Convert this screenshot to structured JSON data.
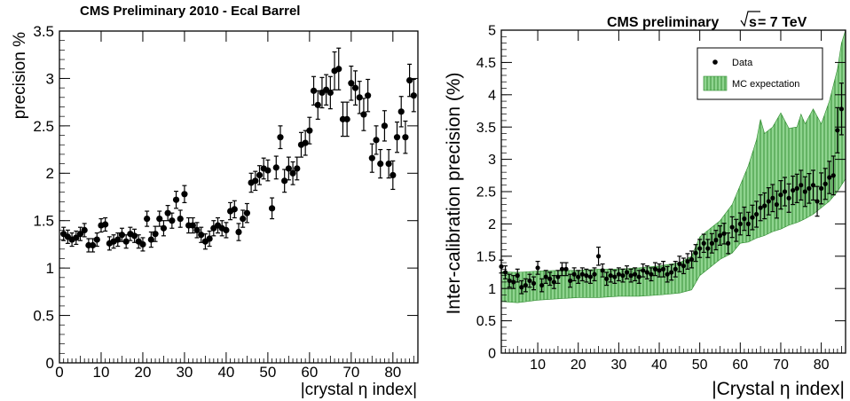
{
  "chart_data": [
    {
      "type": "scatter",
      "title": "CMS Preliminary 2010 - Ecal Barrel",
      "xlabel": "|crystal η index|",
      "ylabel": "precision %",
      "xlim": [
        0,
        86
      ],
      "ylim": [
        0,
        3.5
      ],
      "xticks": [
        0,
        10,
        20,
        30,
        40,
        50,
        60,
        70,
        80
      ],
      "yticks": [
        0,
        0.5,
        1,
        1.5,
        2,
        2.5,
        3,
        3.5
      ],
      "ytick_labels": [
        "0",
        "0.5",
        "1",
        "1.5",
        "2",
        "2.5",
        "3",
        "3.5"
      ],
      "grid": false,
      "series": [
        {
          "color": "#000000",
          "x": [
            1,
            2,
            3,
            4,
            5,
            6,
            7,
            8,
            9,
            10,
            11,
            12,
            13,
            14,
            15,
            16,
            17,
            18,
            19,
            20,
            21,
            22,
            23,
            24,
            25,
            26,
            27,
            28,
            29,
            30,
            31,
            32,
            33,
            34,
            35,
            36,
            37,
            38,
            39,
            40,
            41,
            42,
            43,
            44,
            45,
            46,
            47,
            48,
            49,
            50,
            51,
            52,
            53,
            54,
            55,
            56,
            57,
            58,
            59,
            60,
            61,
            62,
            63,
            64,
            65,
            66,
            67,
            68,
            69,
            70,
            71,
            72,
            73,
            74,
            75,
            76,
            77,
            78,
            79,
            80,
            81,
            82,
            83,
            84,
            85
          ],
          "y": [
            1.36,
            1.33,
            1.3,
            1.32,
            1.36,
            1.4,
            1.24,
            1.24,
            1.3,
            1.45,
            1.46,
            1.26,
            1.28,
            1.3,
            1.35,
            1.28,
            1.36,
            1.34,
            1.28,
            1.25,
            1.52,
            1.3,
            1.36,
            1.52,
            1.42,
            1.58,
            1.5,
            1.72,
            1.52,
            1.78,
            1.45,
            1.45,
            1.4,
            1.35,
            1.28,
            1.31,
            1.42,
            1.45,
            1.42,
            1.4,
            1.6,
            1.62,
            1.38,
            1.52,
            1.58,
            1.9,
            1.92,
            1.98,
            2.05,
            2.03,
            1.63,
            2.06,
            2.38,
            1.92,
            2.05,
            2.0,
            2.05,
            2.3,
            2.32,
            2.45,
            2.87,
            2.72,
            2.85,
            2.88,
            2.85,
            3.08,
            3.1,
            2.57,
            2.57,
            2.95,
            2.9,
            2.8,
            2.62,
            2.82,
            2.16,
            2.35,
            2.1,
            2.5,
            2.1,
            1.98,
            2.38,
            2.65,
            2.38,
            2.98,
            2.82
          ],
          "err": [
            0.07,
            0.07,
            0.07,
            0.07,
            0.07,
            0.07,
            0.07,
            0.07,
            0.07,
            0.07,
            0.07,
            0.07,
            0.07,
            0.07,
            0.07,
            0.07,
            0.07,
            0.07,
            0.07,
            0.07,
            0.08,
            0.08,
            0.08,
            0.08,
            0.08,
            0.08,
            0.08,
            0.09,
            0.09,
            0.09,
            0.08,
            0.08,
            0.08,
            0.08,
            0.08,
            0.08,
            0.08,
            0.08,
            0.08,
            0.08,
            0.09,
            0.09,
            0.09,
            0.09,
            0.1,
            0.1,
            0.1,
            0.1,
            0.11,
            0.11,
            0.11,
            0.12,
            0.12,
            0.12,
            0.12,
            0.12,
            0.12,
            0.13,
            0.13,
            0.14,
            0.15,
            0.15,
            0.16,
            0.16,
            0.17,
            0.2,
            0.22,
            0.18,
            0.18,
            0.18,
            0.18,
            0.17,
            0.17,
            0.17,
            0.15,
            0.15,
            0.15,
            0.16,
            0.15,
            0.15,
            0.16,
            0.16,
            0.17,
            0.17,
            0.17
          ]
        }
      ]
    },
    {
      "type": "scatter",
      "title": "CMS preliminary",
      "title_suffix": "s",
      "title_tail": " = 7 TeV",
      "xlabel": "|Crystal η index|",
      "ylabel": "Inter-calibration precision (%)",
      "xlim": [
        1,
        86
      ],
      "ylim": [
        0,
        5
      ],
      "xticks": [
        10,
        20,
        30,
        40,
        50,
        60,
        70,
        80
      ],
      "yticks": [
        0,
        0.5,
        1,
        1.5,
        2,
        2.5,
        3,
        3.5,
        4,
        4.5,
        5
      ],
      "ytick_labels": [
        "0",
        "0.5",
        "1",
        "1.5",
        "2",
        "2.5",
        "3",
        "3.5",
        "4",
        "4.5",
        "5"
      ],
      "grid": false,
      "legend": {
        "position": "top-right",
        "entries": [
          {
            "label": "Data",
            "color": "#000000"
          },
          {
            "label": "MC expectation",
            "color": "#8fd48f"
          }
        ]
      },
      "band": {
        "color": "#8fd48f",
        "hatch": "#2e8b2e",
        "x": [
          1,
          5,
          10,
          15,
          20,
          25,
          30,
          35,
          40,
          45,
          48,
          50,
          52,
          55,
          58,
          60,
          62,
          64,
          65,
          66,
          68,
          70,
          72,
          74,
          75,
          76,
          78,
          80,
          82,
          84,
          85,
          86
        ],
        "low": [
          0.8,
          0.78,
          0.82,
          0.84,
          0.86,
          0.86,
          0.88,
          0.88,
          0.9,
          0.93,
          0.98,
          1.2,
          1.3,
          1.45,
          1.55,
          1.7,
          1.72,
          1.78,
          1.8,
          1.82,
          1.88,
          1.92,
          1.98,
          2.02,
          2.05,
          2.08,
          2.15,
          2.25,
          2.35,
          2.5,
          2.6,
          2.7
        ],
        "high": [
          1.26,
          1.25,
          1.27,
          1.28,
          1.28,
          1.3,
          1.3,
          1.32,
          1.35,
          1.4,
          1.5,
          1.8,
          1.9,
          2.05,
          2.3,
          2.6,
          2.9,
          3.3,
          3.62,
          3.4,
          3.5,
          3.72,
          3.48,
          3.5,
          3.7,
          3.55,
          3.78,
          3.55,
          3.9,
          4.4,
          4.8,
          5.0
        ]
      },
      "series": [
        {
          "name": "Data",
          "color": "#000000",
          "x": [
            1,
            2,
            3,
            4,
            5,
            6,
            7,
            8,
            9,
            10,
            11,
            12,
            13,
            14,
            15,
            16,
            17,
            18,
            19,
            20,
            21,
            22,
            23,
            24,
            25,
            26,
            27,
            28,
            29,
            30,
            31,
            32,
            33,
            34,
            35,
            36,
            37,
            38,
            39,
            40,
            41,
            42,
            43,
            44,
            45,
            46,
            47,
            48,
            49,
            50,
            51,
            52,
            53,
            54,
            55,
            56,
            57,
            58,
            59,
            60,
            61,
            62,
            63,
            64,
            65,
            66,
            67,
            68,
            69,
            70,
            71,
            72,
            73,
            74,
            75,
            76,
            77,
            78,
            79,
            80,
            81,
            82,
            83,
            84,
            85
          ],
          "y": [
            1.34,
            1.25,
            1.12,
            1.1,
            1.2,
            1.02,
            1.05,
            1.12,
            1.08,
            1.32,
            1.05,
            1.18,
            1.15,
            1.1,
            1.18,
            1.3,
            1.3,
            1.12,
            1.22,
            1.18,
            1.22,
            1.2,
            1.18,
            1.22,
            1.5,
            1.28,
            1.15,
            1.2,
            1.18,
            1.22,
            1.2,
            1.25,
            1.2,
            1.22,
            1.18,
            1.28,
            1.25,
            1.22,
            1.3,
            1.28,
            1.3,
            1.22,
            1.25,
            1.3,
            1.38,
            1.35,
            1.42,
            1.45,
            1.55,
            1.62,
            1.7,
            1.62,
            1.7,
            1.75,
            1.82,
            1.85,
            1.7,
            1.95,
            1.9,
            2.0,
            2.08,
            2.0,
            2.1,
            2.15,
            2.25,
            2.28,
            2.35,
            2.4,
            2.3,
            2.45,
            2.5,
            2.4,
            2.52,
            2.55,
            2.6,
            2.5,
            2.55,
            2.6,
            2.35,
            2.55,
            2.62,
            2.72,
            2.75,
            3.45,
            3.78
          ],
          "err": [
            0.1,
            0.1,
            0.1,
            0.1,
            0.1,
            0.1,
            0.1,
            0.1,
            0.1,
            0.1,
            0.1,
            0.1,
            0.1,
            0.1,
            0.1,
            0.1,
            0.1,
            0.1,
            0.1,
            0.1,
            0.1,
            0.1,
            0.1,
            0.1,
            0.14,
            0.1,
            0.1,
            0.1,
            0.1,
            0.1,
            0.1,
            0.1,
            0.1,
            0.1,
            0.1,
            0.1,
            0.1,
            0.1,
            0.1,
            0.1,
            0.12,
            0.12,
            0.12,
            0.12,
            0.12,
            0.12,
            0.12,
            0.13,
            0.13,
            0.14,
            0.14,
            0.14,
            0.15,
            0.15,
            0.15,
            0.16,
            0.16,
            0.16,
            0.17,
            0.17,
            0.18,
            0.18,
            0.19,
            0.2,
            0.2,
            0.2,
            0.21,
            0.21,
            0.21,
            0.22,
            0.22,
            0.22,
            0.22,
            0.22,
            0.23,
            0.23,
            0.23,
            0.23,
            0.23,
            0.24,
            0.24,
            0.25,
            0.3,
            0.35,
            0.4
          ]
        }
      ]
    }
  ]
}
